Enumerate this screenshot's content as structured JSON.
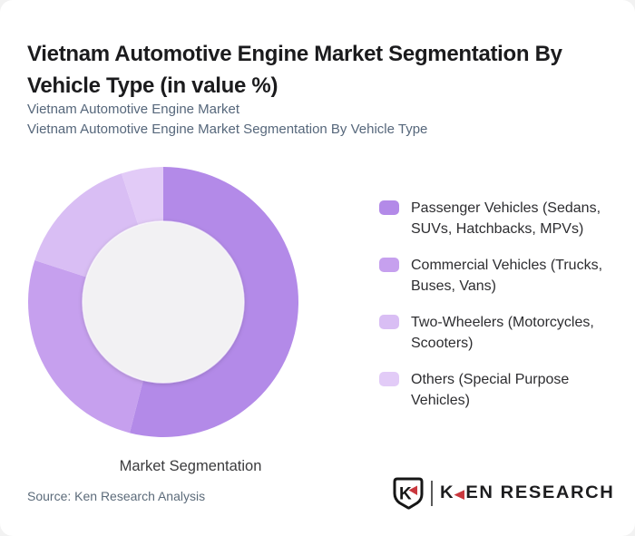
{
  "title": "Vietnam Automotive Engine Market Segmentation By\nVehicle Type (in value %)",
  "subtitle_line1": "Vietnam Automotive Engine Market",
  "subtitle_line2": "Vietnam Automotive Engine Market Segmentation By Vehicle Type",
  "chart_data": {
    "type": "pie",
    "variant": "donut",
    "title": "Vietnam Automotive Engine Market Segmentation By Vehicle Type",
    "center_label": "Market Segmentation",
    "unit": "value %",
    "start_angle_deg": 0,
    "direction": "clockwise",
    "legend_position": "right",
    "categories": [
      "Passenger Vehicles (Sedans, SUVs, Hatchbacks, MPVs)",
      "Commercial Vehicles (Trucks, Buses, Vans)",
      "Two-Wheelers (Motorcycles, Scooters)",
      "Others (Special Purpose Vehicles)"
    ],
    "values": [
      54,
      26,
      15,
      5
    ],
    "colors": [
      "#b38ae8",
      "#c6a0ee",
      "#d9bef4",
      "#e2cbf7"
    ],
    "inner_circle_color": "#f2f1f3"
  },
  "footer": {
    "source_label": "Source: Ken Research Analysis",
    "logo": {
      "emblem_letter": "K",
      "brand_first": "K",
      "brand_triangle": "◀",
      "brand_rest": "EN RESEARCH",
      "accent_color": "#c9373d",
      "text_color": "#1d1d1f"
    }
  }
}
